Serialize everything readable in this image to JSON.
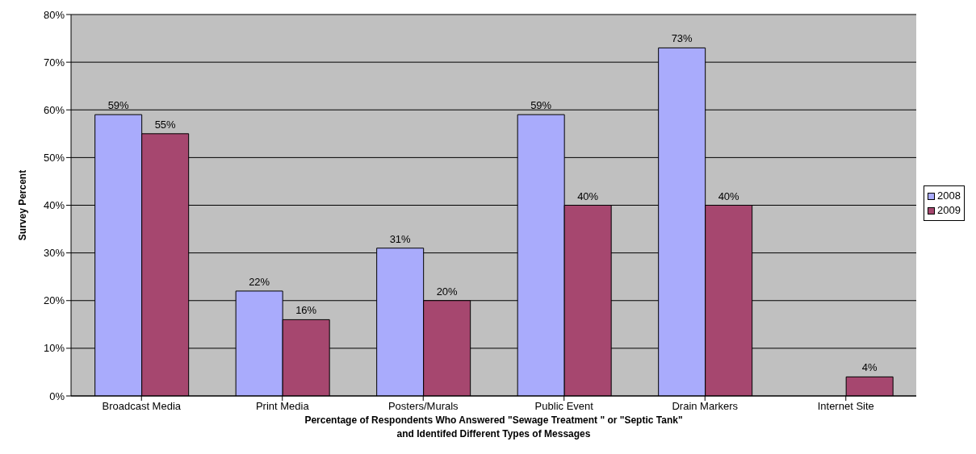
{
  "chart_data": {
    "type": "bar",
    "xlabel": "Percentage of Respondents Who Answered \"Sewage Treatment \" or \"Septic Tank\"\nand Identifed  Different Types of Messages",
    "ylabel": "Survey Percent",
    "categories": [
      "Broadcast Media",
      "Print Media",
      "Posters/Murals",
      "Public Event",
      "Drain Markers",
      "Internet Site"
    ],
    "series": [
      {
        "name": "2008",
        "color": "#a9abfc",
        "values": [
          59,
          22,
          31,
          59,
          73,
          null
        ],
        "value_labels": [
          "59%",
          "22%",
          "31%",
          "59%",
          "73%",
          null
        ]
      },
      {
        "name": "2009",
        "color": "#a6476f",
        "values": [
          55,
          16,
          20,
          40,
          40,
          4
        ],
        "value_labels": [
          "55%",
          "16%",
          "20%",
          "40%",
          "40%",
          "4%"
        ]
      }
    ],
    "ylim": [
      0,
      80
    ],
    "yticks": [
      {
        "value": 0,
        "label": "0%"
      },
      {
        "value": 10,
        "label": "10%"
      },
      {
        "value": 20,
        "label": "20%"
      },
      {
        "value": 30,
        "label": "30%"
      },
      {
        "value": 40,
        "label": "40%"
      },
      {
        "value": 50,
        "label": "50%"
      },
      {
        "value": 60,
        "label": "60%"
      },
      {
        "value": 70,
        "label": "70%"
      },
      {
        "value": 80,
        "label": "80%"
      }
    ],
    "grid": "y",
    "legend": "right"
  }
}
